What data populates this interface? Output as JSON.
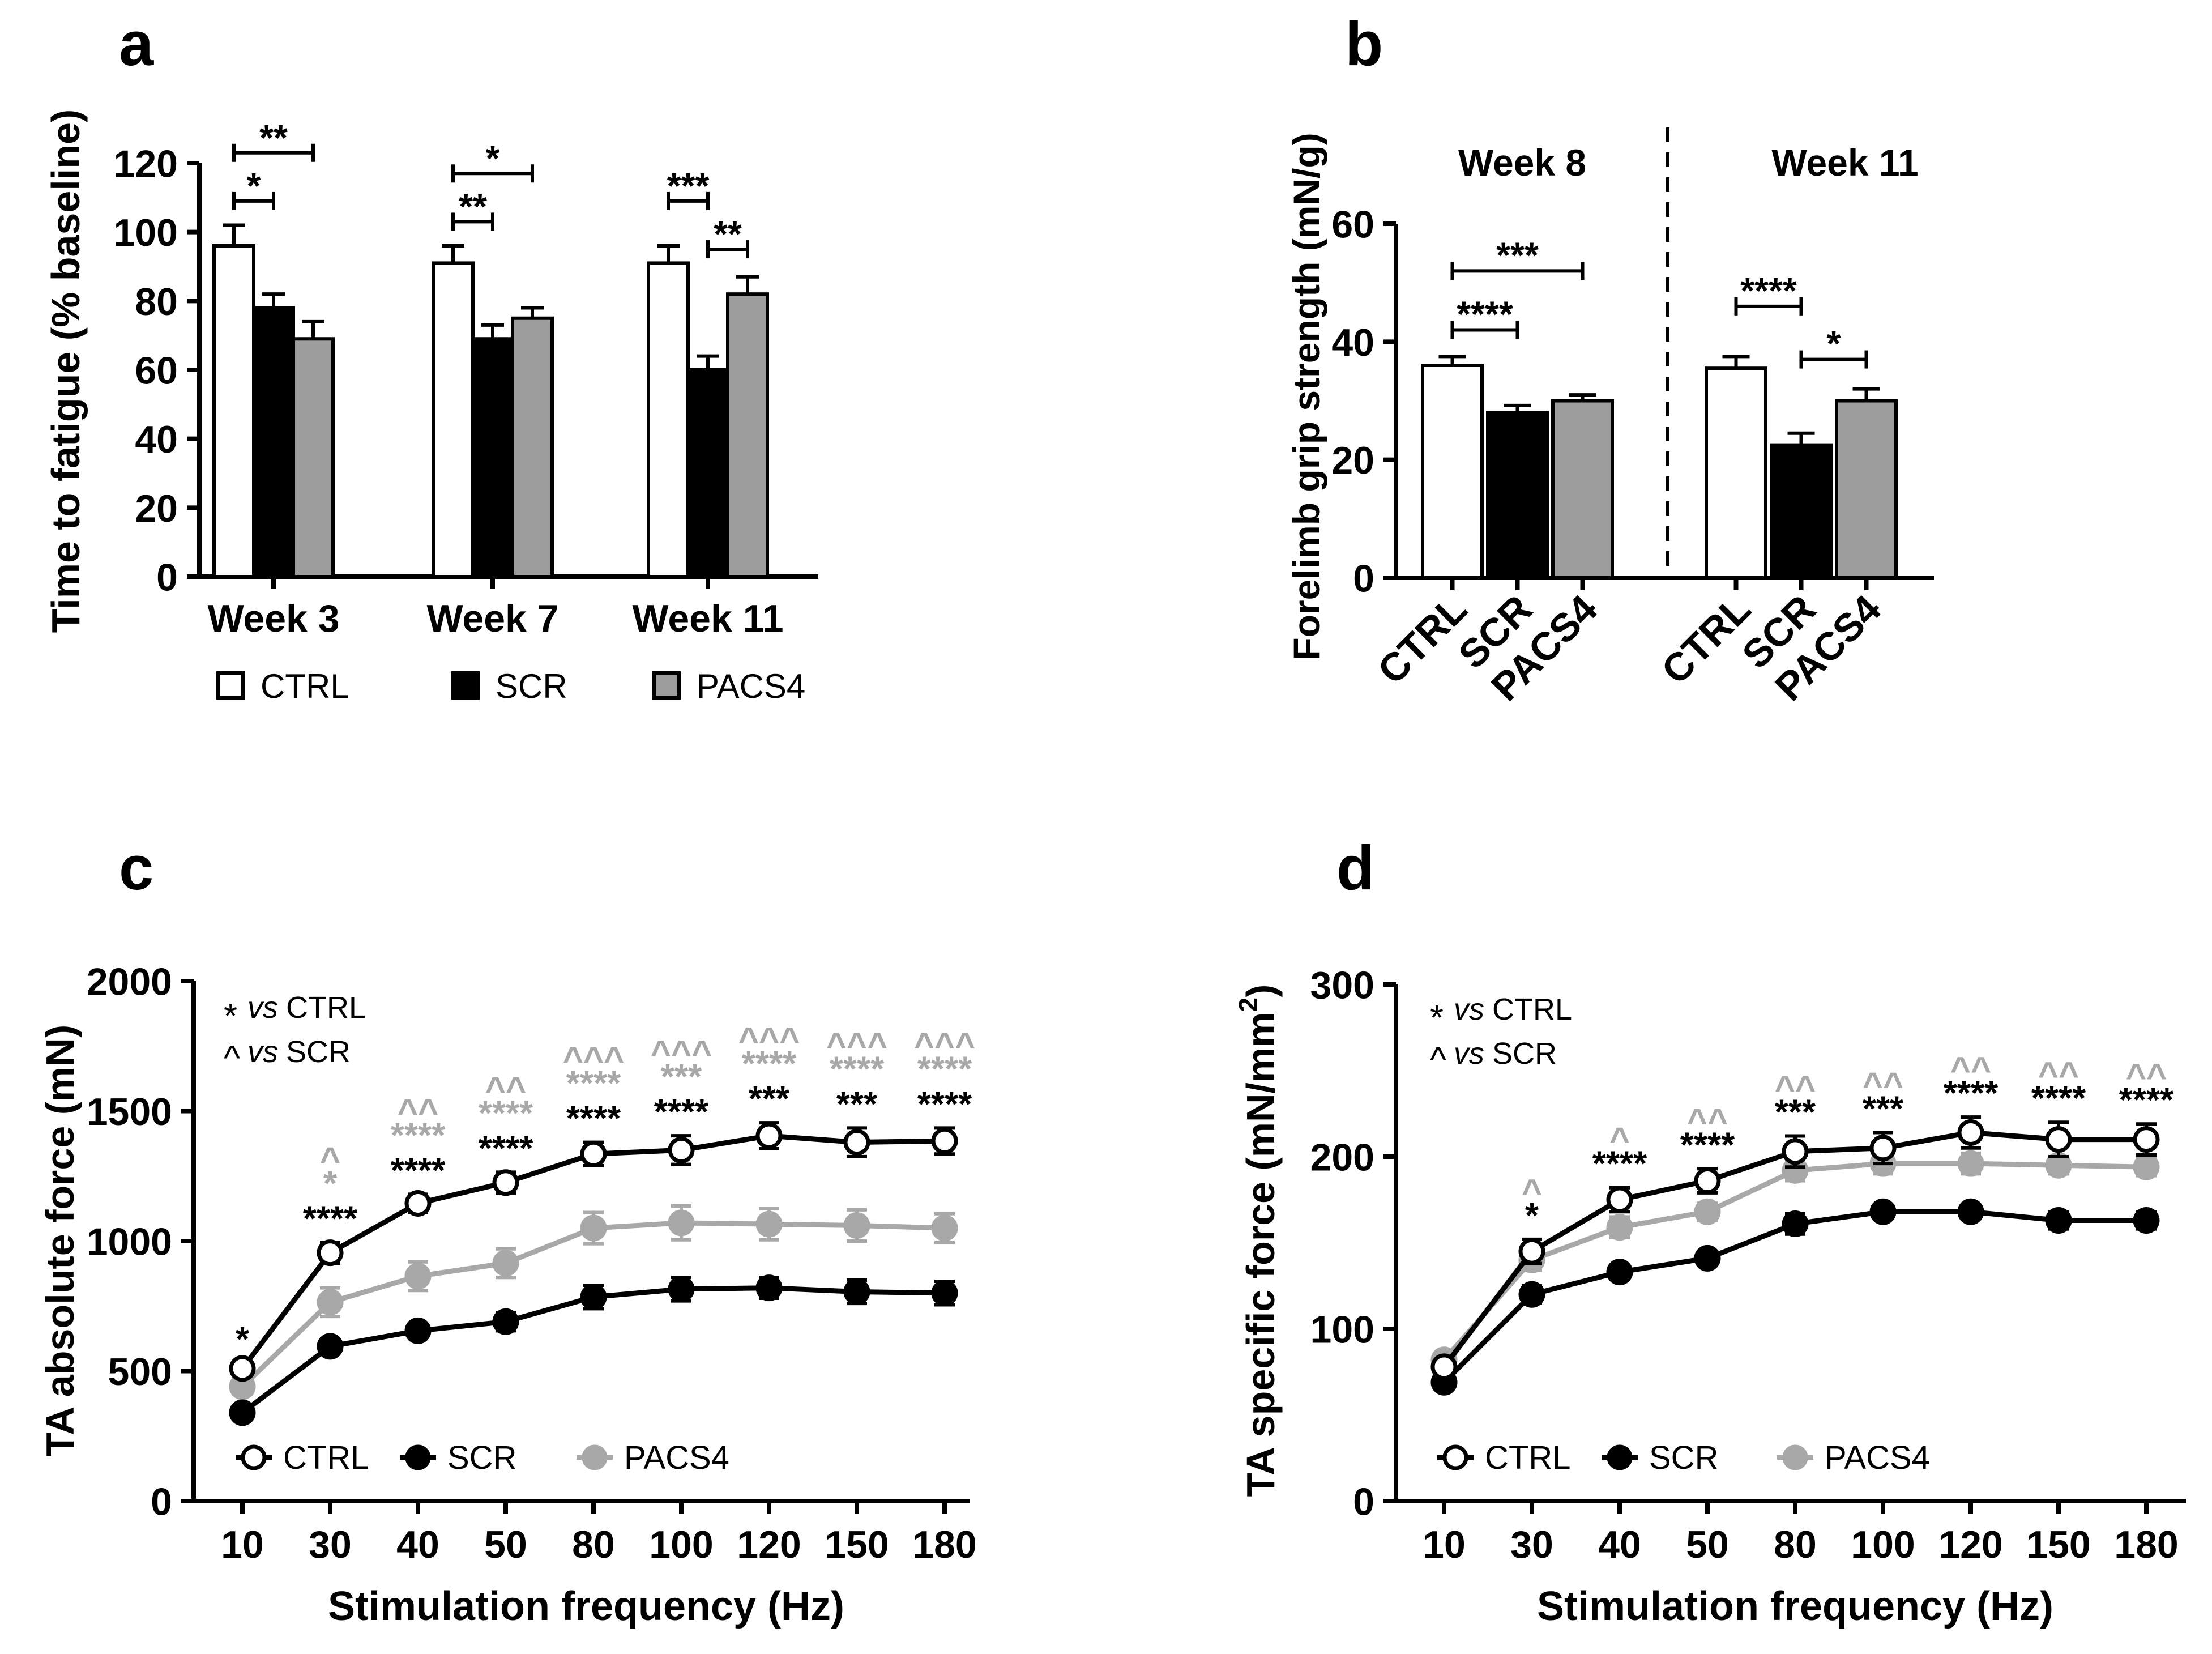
{
  "chart_data": [
    {
      "panel": "a",
      "type": "bar",
      "ylabel": "Time to fatigue (% baseline)",
      "xlabel": "",
      "ylim": [
        0,
        120
      ],
      "yticks": [
        "0",
        "20",
        "40",
        "60",
        "80",
        "100",
        "120"
      ],
      "categories": [
        "Week 3",
        "Week 7",
        "Week 11"
      ],
      "series": [
        {
          "name": "CTRL",
          "color": "#ffffff",
          "values": [
            96,
            91,
            91
          ],
          "errors": [
            6,
            5,
            5
          ]
        },
        {
          "name": "SCR",
          "color": "#000000",
          "values": [
            78,
            69,
            60
          ],
          "errors": [
            4,
            4,
            4
          ]
        },
        {
          "name": "PACS4",
          "color": "#9d9d9d",
          "values": [
            69,
            75,
            82
          ],
          "errors": [
            5,
            3,
            5
          ]
        }
      ],
      "legend": [
        "CTRL",
        "SCR",
        "PACS4"
      ],
      "significance": [
        {
          "group": 0,
          "from": 0,
          "to": 1,
          "y": 109,
          "label": "*"
        },
        {
          "group": 0,
          "from": 0,
          "to": 2,
          "y": 123,
          "label": "**"
        },
        {
          "group": 1,
          "from": 0,
          "to": 1,
          "y": 103,
          "label": "**"
        },
        {
          "group": 1,
          "from": 0,
          "to": 2,
          "y": 117,
          "label": "*"
        },
        {
          "group": 2,
          "from": 0,
          "to": 1,
          "y": 109,
          "label": "***"
        },
        {
          "group": 2,
          "from": 1,
          "to": 2,
          "y": 95,
          "label": "**"
        }
      ]
    },
    {
      "panel": "b",
      "type": "bar",
      "ylabel": "Forelimb grip strength (mN/g)",
      "ylim": [
        0,
        60
      ],
      "yticks": [
        "0",
        "20",
        "40",
        "60"
      ],
      "groups": [
        "Week 8",
        "Week 11"
      ],
      "categories": [
        "CTRL",
        "SCR",
        "PACS4"
      ],
      "series": [
        {
          "name": "Week 8",
          "values": [
            36,
            28,
            30
          ],
          "errors": [
            1.5,
            1.2,
            1
          ]
        },
        {
          "name": "Week 11",
          "values": [
            35.5,
            22.5,
            30
          ],
          "errors": [
            2,
            2,
            2
          ]
        }
      ],
      "colors": [
        "#ffffff",
        "#000000",
        "#9d9d9d"
      ],
      "significance": [
        {
          "group": 0,
          "from": 0,
          "to": 1,
          "y": 42,
          "label": "****"
        },
        {
          "group": 0,
          "from": 0,
          "to": 2,
          "y": 52,
          "label": "***"
        },
        {
          "group": 1,
          "from": 0,
          "to": 1,
          "y": 46,
          "label": "****"
        },
        {
          "group": 1,
          "from": 1,
          "to": 2,
          "y": 37,
          "label": "*"
        }
      ]
    },
    {
      "panel": "c",
      "type": "line",
      "xlabel": "Stimulation frequency (Hz)",
      "ylabel": "TA absolute force (mN)",
      "ylim": [
        0,
        2000
      ],
      "yticks": [
        "0",
        "500",
        "1000",
        "1500",
        "2000"
      ],
      "categories": [
        "10",
        "30",
        "40",
        "50",
        "80",
        "100",
        "120",
        "150",
        "180"
      ],
      "series": [
        {
          "name": "CTRL",
          "values": [
            510,
            955,
            1145,
            1225,
            1335,
            1350,
            1405,
            1380,
            1385
          ],
          "errors": [
            20,
            40,
            35,
            40,
            45,
            55,
            50,
            55,
            50
          ]
        },
        {
          "name": "SCR",
          "values": [
            340,
            595,
            655,
            690,
            785,
            815,
            820,
            805,
            800
          ],
          "errors": [
            25,
            30,
            30,
            35,
            45,
            45,
            40,
            45,
            45
          ]
        },
        {
          "name": "PACS4",
          "values": [
            440,
            765,
            865,
            915,
            1050,
            1070,
            1065,
            1060,
            1050
          ],
          "errors": [
            30,
            55,
            55,
            55,
            60,
            65,
            60,
            60,
            55
          ]
        }
      ],
      "legend": [
        "CTRL",
        "SCR",
        "PACS4"
      ],
      "key": [
        {
          "symbol": "*",
          "vs": "vs",
          "ref": "CTRL"
        },
        {
          "symbol": "^",
          "vs": "vs",
          "ref": "SCR"
        }
      ],
      "annotations": [
        {
          "black": "*",
          "gray_star": "",
          "gray_caret": ""
        },
        {
          "black": "****",
          "gray_star": "*",
          "gray_caret": "^"
        },
        {
          "black": "****",
          "gray_star": "****",
          "gray_caret": "^^"
        },
        {
          "black": "****",
          "gray_star": "****",
          "gray_caret": "^^"
        },
        {
          "black": "****",
          "gray_star": "****",
          "gray_caret": "^^^"
        },
        {
          "black": "****",
          "gray_star": "***",
          "gray_caret": "^^^"
        },
        {
          "black": "***",
          "gray_star": "****",
          "gray_caret": "^^^"
        },
        {
          "black": "***",
          "gray_star": "****",
          "gray_caret": "^^^"
        },
        {
          "black": "****",
          "gray_star": "****",
          "gray_caret": "^^^"
        }
      ]
    },
    {
      "panel": "d",
      "type": "line",
      "xlabel": "Stimulation frequency (Hz)",
      "ylabel": "TA specific force (mN/mm",
      "ylabel_sup": "2",
      "ylabel_close": ")",
      "ylim": [
        0,
        300
      ],
      "yticks": [
        "0",
        "100",
        "200",
        "300"
      ],
      "categories": [
        "10",
        "30",
        "40",
        "50",
        "80",
        "100",
        "120",
        "150",
        "180"
      ],
      "series": [
        {
          "name": "CTRL",
          "values": [
            78,
            145,
            175,
            186,
            203,
            205,
            214,
            210,
            210
          ],
          "errors": [
            4,
            7,
            7,
            7,
            9,
            9,
            9,
            10,
            9
          ]
        },
        {
          "name": "SCR",
          "values": [
            69,
            120,
            133,
            141,
            161,
            168,
            168,
            163,
            163
          ],
          "errors": [
            3,
            5,
            4,
            4,
            6,
            4,
            4,
            5,
            5
          ]
        },
        {
          "name": "PACS4",
          "values": [
            82,
            140,
            159,
            168,
            192,
            196,
            196,
            195,
            194
          ],
          "errors": [
            4,
            6,
            6,
            5,
            6,
            6,
            6,
            5,
            5
          ]
        }
      ],
      "legend": [
        "CTRL",
        "SCR",
        "PACS4"
      ],
      "key": [
        {
          "symbol": "*",
          "vs": "vs",
          "ref": "CTRL"
        },
        {
          "symbol": "^",
          "vs": "vs",
          "ref": "SCR"
        }
      ],
      "annotations": [
        {
          "black": "",
          "gray_caret": ""
        },
        {
          "black": "*",
          "gray_caret": "^"
        },
        {
          "black": "****",
          "gray_caret": "^"
        },
        {
          "black": "****",
          "gray_caret": "^^"
        },
        {
          "black": "***",
          "gray_caret": "^^"
        },
        {
          "black": "***",
          "gray_caret": "^^"
        },
        {
          "black": "****",
          "gray_caret": "^^"
        },
        {
          "black": "****",
          "gray_caret": "^^"
        },
        {
          "black": "****",
          "gray_caret": "^^"
        }
      ]
    }
  ],
  "panel_labels": [
    "a",
    "b",
    "c",
    "d"
  ],
  "colors": {
    "black": "#000000",
    "gray": "#9d9d9d",
    "light_gray": "#a8a8a8"
  }
}
